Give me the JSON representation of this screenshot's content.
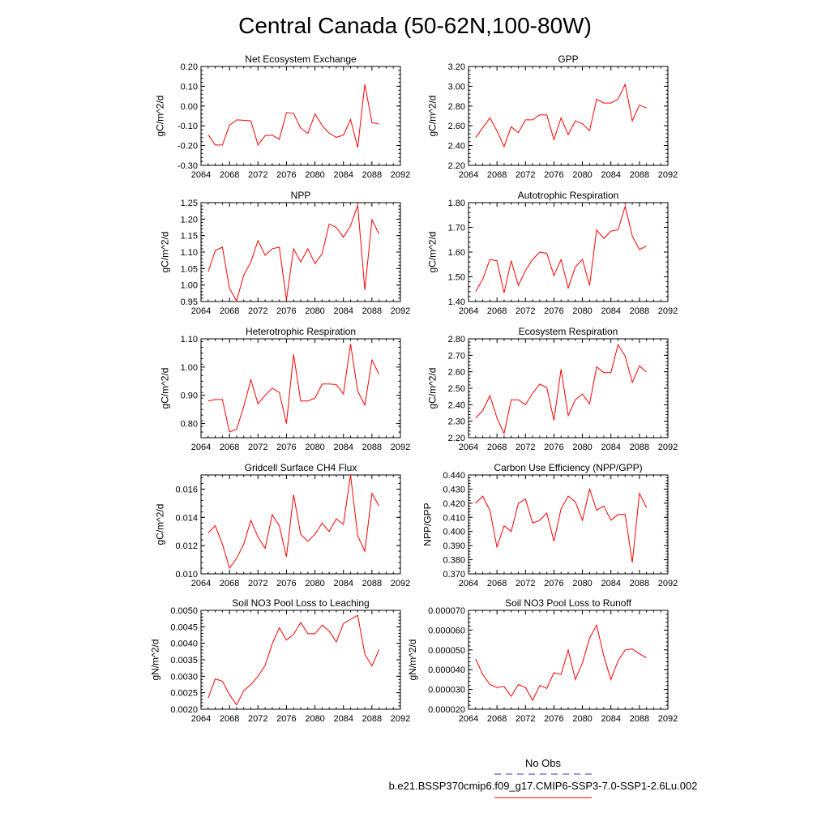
{
  "suptitle": "Central Canada (50-62N,100-80W)",
  "legend": [
    {
      "label": "No Obs",
      "color": "#3333cc",
      "dash": true
    },
    {
      "label": "b.e21.BSSP370cmip6.f09_g17.CMIP6-SSP3-7.0-SSP1-2.6Lu.002",
      "color": "#ff0000",
      "dash": false
    }
  ],
  "line_color": "#ff0000",
  "chart_data": [
    {
      "type": "line",
      "title": "Net Ecosystem Exchange",
      "ylabel": "gC/m^2/d",
      "xlim": [
        2064,
        2092
      ],
      "xticks": [
        "2064",
        "2068",
        "2072",
        "2076",
        "2080",
        "2084",
        "2088",
        "2092"
      ],
      "ylim": [
        -0.3,
        0.2
      ],
      "yticks": [
        "-0.30",
        "-0.20",
        "-0.10",
        "0.00",
        "0.10",
        "0.20"
      ],
      "x": [
        2065,
        2066,
        2067,
        2068,
        2069,
        2070,
        2071,
        2072,
        2073,
        2074,
        2075,
        2076,
        2077,
        2078,
        2079,
        2080,
        2081,
        2082,
        2083,
        2084,
        2085,
        2086,
        2087,
        2088,
        2089
      ],
      "series": [
        {
          "values": [
            -0.145,
            -0.197,
            -0.197,
            -0.097,
            -0.07,
            -0.072,
            -0.075,
            -0.197,
            -0.15,
            -0.147,
            -0.168,
            -0.033,
            -0.037,
            -0.112,
            -0.138,
            -0.04,
            -0.098,
            -0.138,
            -0.158,
            -0.147,
            -0.068,
            -0.21,
            0.11,
            -0.083,
            -0.092
          ]
        }
      ]
    },
    {
      "type": "line",
      "title": "GPP",
      "ylabel": "gC/m^2/d",
      "xlim": [
        2064,
        2092
      ],
      "xticks": [
        "2064",
        "2068",
        "2072",
        "2076",
        "2080",
        "2084",
        "2088",
        "2092"
      ],
      "ylim": [
        2.2,
        3.2
      ],
      "yticks": [
        "2.20",
        "2.40",
        "2.60",
        "2.80",
        "3.00",
        "3.20"
      ],
      "x": [
        2065,
        2066,
        2067,
        2068,
        2069,
        2070,
        2071,
        2072,
        2073,
        2074,
        2075,
        2076,
        2077,
        2078,
        2079,
        2080,
        2081,
        2082,
        2083,
        2084,
        2085,
        2086,
        2087,
        2088,
        2089
      ],
      "series": [
        {
          "values": [
            2.48,
            2.58,
            2.68,
            2.55,
            2.39,
            2.59,
            2.53,
            2.66,
            2.66,
            2.71,
            2.71,
            2.46,
            2.68,
            2.51,
            2.65,
            2.62,
            2.55,
            2.87,
            2.83,
            2.83,
            2.87,
            3.02,
            2.65,
            2.81,
            2.78
          ]
        }
      ]
    },
    {
      "type": "line",
      "title": "NPP",
      "ylabel": "gC/m^2/d",
      "xlim": [
        2064,
        2092
      ],
      "xticks": [
        "2064",
        "2068",
        "2072",
        "2076",
        "2080",
        "2084",
        "2088",
        "2092"
      ],
      "ylim": [
        0.95,
        1.25
      ],
      "yticks": [
        "0.95",
        "1.00",
        "1.05",
        "1.10",
        "1.15",
        "1.20",
        "1.25"
      ],
      "x": [
        2065,
        2066,
        2067,
        2068,
        2069,
        2070,
        2071,
        2072,
        2073,
        2074,
        2075,
        2076,
        2077,
        2078,
        2079,
        2080,
        2081,
        2082,
        2083,
        2084,
        2085,
        2086,
        2087,
        2088,
        2089
      ],
      "series": [
        {
          "values": [
            1.04,
            1.105,
            1.115,
            0.99,
            0.952,
            1.03,
            1.07,
            1.135,
            1.09,
            1.11,
            1.115,
            0.955,
            1.11,
            1.07,
            1.11,
            1.065,
            1.095,
            1.185,
            1.175,
            1.145,
            1.18,
            1.242,
            0.985,
            1.198,
            1.155
          ]
        }
      ]
    },
    {
      "type": "line",
      "title": "Autotrophic Respiration",
      "ylabel": "gC/m^2/d",
      "xlim": [
        2064,
        2092
      ],
      "xticks": [
        "2064",
        "2068",
        "2072",
        "2076",
        "2080",
        "2084",
        "2088",
        "2092"
      ],
      "ylim": [
        1.4,
        1.8
      ],
      "yticks": [
        "1.40",
        "1.50",
        "1.60",
        "1.70",
        "1.80"
      ],
      "x": [
        2065,
        2066,
        2067,
        2068,
        2069,
        2070,
        2071,
        2072,
        2073,
        2074,
        2075,
        2076,
        2077,
        2078,
        2079,
        2080,
        2081,
        2082,
        2083,
        2084,
        2085,
        2086,
        2087,
        2088,
        2089
      ],
      "series": [
        {
          "values": [
            1.44,
            1.49,
            1.57,
            1.565,
            1.435,
            1.565,
            1.465,
            1.525,
            1.57,
            1.6,
            1.595,
            1.505,
            1.57,
            1.455,
            1.54,
            1.57,
            1.465,
            1.69,
            1.655,
            1.685,
            1.69,
            1.785,
            1.665,
            1.61,
            1.625
          ]
        }
      ]
    },
    {
      "type": "line",
      "title": "Heterotrophic Respiration",
      "ylabel": "gC/m^2/d",
      "xlim": [
        2064,
        2092
      ],
      "xticks": [
        "2064",
        "2068",
        "2072",
        "2076",
        "2080",
        "2084",
        "2088",
        "2092"
      ],
      "ylim": [
        0.75,
        1.1
      ],
      "yticks": [
        "0.80",
        "0.90",
        "1.00",
        "1.10"
      ],
      "x": [
        2065,
        2066,
        2067,
        2068,
        2069,
        2070,
        2071,
        2072,
        2073,
        2074,
        2075,
        2076,
        2077,
        2078,
        2079,
        2080,
        2081,
        2082,
        2083,
        2084,
        2085,
        2086,
        2087,
        2088,
        2089
      ],
      "series": [
        {
          "values": [
            0.88,
            0.885,
            0.885,
            0.77,
            0.78,
            0.86,
            0.955,
            0.87,
            0.9,
            0.925,
            0.91,
            0.8,
            1.045,
            0.88,
            0.88,
            0.89,
            0.94,
            0.94,
            0.938,
            0.905,
            1.082,
            0.915,
            0.865,
            1.025,
            0.975
          ]
        }
      ]
    },
    {
      "type": "line",
      "title": "Ecosystem Respiration",
      "ylabel": "gC/m^2/d",
      "xlim": [
        2064,
        2092
      ],
      "xticks": [
        "2064",
        "2068",
        "2072",
        "2076",
        "2080",
        "2084",
        "2088",
        "2092"
      ],
      "ylim": [
        2.2,
        2.8
      ],
      "yticks": [
        "2.20",
        "2.30",
        "2.40",
        "2.50",
        "2.60",
        "2.70",
        "2.80"
      ],
      "x": [
        2065,
        2066,
        2067,
        2068,
        2069,
        2070,
        2071,
        2072,
        2073,
        2074,
        2075,
        2076,
        2077,
        2078,
        2079,
        2080,
        2081,
        2082,
        2083,
        2084,
        2085,
        2086,
        2087,
        2088,
        2089
      ],
      "series": [
        {
          "values": [
            2.32,
            2.365,
            2.455,
            2.32,
            2.225,
            2.43,
            2.43,
            2.4,
            2.47,
            2.525,
            2.505,
            2.305,
            2.615,
            2.335,
            2.43,
            2.465,
            2.405,
            2.63,
            2.595,
            2.595,
            2.765,
            2.695,
            2.535,
            2.635,
            2.6
          ]
        }
      ]
    },
    {
      "type": "line",
      "title": "Gridcell Surface CH4 Flux",
      "ylabel": "gC/m^2/d",
      "xlim": [
        2064,
        2092
      ],
      "xticks": [
        "2064",
        "2068",
        "2072",
        "2076",
        "2080",
        "2084",
        "2088",
        "2092"
      ],
      "ylim": [
        0.01,
        0.017
      ],
      "yticks": [
        "0.010",
        "0.012",
        "0.014",
        "0.016"
      ],
      "x": [
        2065,
        2066,
        2067,
        2068,
        2069,
        2070,
        2071,
        2072,
        2073,
        2074,
        2075,
        2076,
        2077,
        2078,
        2079,
        2080,
        2081,
        2082,
        2083,
        2084,
        2085,
        2086,
        2087,
        2088,
        2089
      ],
      "series": [
        {
          "values": [
            0.0129,
            0.0134,
            0.0121,
            0.0104,
            0.0111,
            0.0121,
            0.0138,
            0.0126,
            0.0118,
            0.0142,
            0.0134,
            0.0112,
            0.0156,
            0.0128,
            0.0123,
            0.0128,
            0.0136,
            0.013,
            0.0139,
            0.0135,
            0.017,
            0.0127,
            0.0116,
            0.0157,
            0.0148
          ]
        }
      ]
    },
    {
      "type": "line",
      "title": "Carbon Use Efficiency (NPP/GPP)",
      "ylabel": "NPP/GPP",
      "xlim": [
        2064,
        2092
      ],
      "xticks": [
        "2064",
        "2068",
        "2072",
        "2076",
        "2080",
        "2084",
        "2088",
        "2092"
      ],
      "ylim": [
        0.37,
        0.44
      ],
      "yticks": [
        "0.370",
        "0.380",
        "0.390",
        "0.400",
        "0.410",
        "0.420",
        "0.430",
        "0.440"
      ],
      "x": [
        2065,
        2066,
        2067,
        2068,
        2069,
        2070,
        2071,
        2072,
        2073,
        2074,
        2075,
        2076,
        2077,
        2078,
        2079,
        2080,
        2081,
        2082,
        2083,
        2084,
        2085,
        2086,
        2087,
        2088,
        2089
      ],
      "series": [
        {
          "values": [
            0.42,
            0.425,
            0.415,
            0.389,
            0.404,
            0.4,
            0.42,
            0.423,
            0.406,
            0.408,
            0.413,
            0.393,
            0.416,
            0.425,
            0.421,
            0.408,
            0.43,
            0.415,
            0.418,
            0.408,
            0.412,
            0.412,
            0.378,
            0.427,
            0.417
          ]
        }
      ]
    },
    {
      "type": "line",
      "title": "Soil NO3 Pool Loss to Leaching",
      "ylabel": "gN/m^2/d",
      "xlim": [
        2064,
        2092
      ],
      "xticks": [
        "2064",
        "2068",
        "2072",
        "2076",
        "2080",
        "2084",
        "2088",
        "2092"
      ],
      "ylim": [
        0.002,
        0.005
      ],
      "yticks": [
        "0.0020",
        "0.0025",
        "0.0030",
        "0.0035",
        "0.0040",
        "0.0045",
        "0.0050"
      ],
      "x": [
        2065,
        2066,
        2067,
        2068,
        2069,
        2070,
        2071,
        2072,
        2073,
        2074,
        2075,
        2076,
        2077,
        2078,
        2079,
        2080,
        2081,
        2082,
        2083,
        2084,
        2085,
        2086,
        2087,
        2088,
        2089
      ],
      "series": [
        {
          "values": [
            0.00234,
            0.00292,
            0.00285,
            0.00245,
            0.00213,
            0.00256,
            0.00275,
            0.003,
            0.00333,
            0.00399,
            0.00447,
            0.0041,
            0.00427,
            0.00463,
            0.00429,
            0.00429,
            0.00455,
            0.00437,
            0.00404,
            0.0046,
            0.00473,
            0.00485,
            0.00367,
            0.00331,
            0.00381
          ]
        }
      ]
    },
    {
      "type": "line",
      "title": "Soil NO3 Pool Loss to Runoff",
      "ylabel": "gN/m^2/d",
      "xlim": [
        2064,
        2092
      ],
      "xticks": [
        "2064",
        "2068",
        "2072",
        "2076",
        "2080",
        "2084",
        "2088",
        "2092"
      ],
      "ylim": [
        2e-05,
        7e-05
      ],
      "yticks": [
        "0.000020",
        "0.000030",
        "0.000040",
        "0.000050",
        "0.000060",
        "0.000070"
      ],
      "x": [
        2065,
        2066,
        2067,
        2068,
        2069,
        2070,
        2071,
        2072,
        2073,
        2074,
        2075,
        2076,
        2077,
        2078,
        2079,
        2080,
        2081,
        2082,
        2083,
        2084,
        2085,
        2086,
        2087,
        2088,
        2089
      ],
      "series": [
        {
          "values": [
            4.55e-05,
            3.75e-05,
            3.25e-05,
            3.1e-05,
            3.15e-05,
            2.65e-05,
            3.25e-05,
            3.1e-05,
            2.45e-05,
            3.2e-05,
            3.05e-05,
            3.85e-05,
            3.75e-05,
            5e-05,
            3.5e-05,
            4.35e-05,
            5.6e-05,
            6.25e-05,
            4.7e-05,
            3.5e-05,
            4.45e-05,
            5e-05,
            5.05e-05,
            4.8e-05,
            4.6e-05
          ]
        }
      ]
    }
  ]
}
